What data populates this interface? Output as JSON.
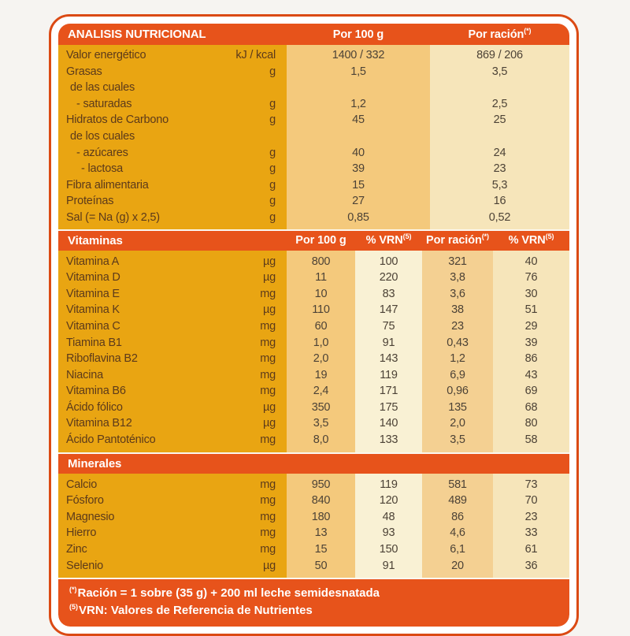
{
  "colors": {
    "band_orange": "#E7531B",
    "border_orange": "#DB4A14",
    "gold": "#E9A512",
    "tan_column": "#F4C97C",
    "cream_column": "#F6E5BA",
    "pale_cream_column": "#F9F1D4",
    "light_tan_column": "#F4D092",
    "label_text": "#5C3A1B",
    "value_text": "#4C4236",
    "page_background": "#F6F4F1"
  },
  "header": {
    "title": "ANALISIS NUTRICIONAL",
    "col_per100": "Por 100 g",
    "col_racion": "Por ración",
    "col_racion_sup": "(*)"
  },
  "energy": {
    "rows": [
      {
        "label": "Valor energético",
        "unit": "kJ / kcal",
        "per100": "1400 / 332",
        "racion": "869 / 206",
        "indent": 0
      },
      {
        "label": "Grasas",
        "unit": "g",
        "per100": "1,5",
        "racion": "3,5",
        "indent": 0
      },
      {
        "label": "de las cuales",
        "unit": "",
        "per100": "",
        "racion": "",
        "indent": 1
      },
      {
        "label": "- saturadas",
        "unit": "g",
        "per100": "1,2",
        "racion": "2,5",
        "indent": 2
      },
      {
        "label": "Hidratos de Carbono",
        "unit": "g",
        "per100": "45",
        "racion": "25",
        "indent": 0
      },
      {
        "label": "de los cuales",
        "unit": "",
        "per100": "",
        "racion": "",
        "indent": 1
      },
      {
        "label": "- azúcares",
        "unit": "g",
        "per100": "40",
        "racion": "24",
        "indent": 2
      },
      {
        "label": "- lactosa",
        "unit": "g",
        "per100": "39",
        "racion": "23",
        "indent": 3
      },
      {
        "label": "Fibra alimentaria",
        "unit": "g",
        "per100": "15",
        "racion": "5,3",
        "indent": 0
      },
      {
        "label": "Proteínas",
        "unit": "g",
        "per100": "27",
        "racion": "16",
        "indent": 0
      },
      {
        "label": "Sal (= Na (g) x 2,5)",
        "unit": "g",
        "per100": "0,85",
        "racion": "0,52",
        "indent": 0
      }
    ]
  },
  "vitamins": {
    "title": "Vitaminas",
    "col_headers": [
      {
        "label": "Por 100 g",
        "sup": ""
      },
      {
        "label": "% VRN",
        "sup": "(5)"
      },
      {
        "label": "Por ración",
        "sup": "(*)"
      },
      {
        "label": "% VRN",
        "sup": "(5)"
      }
    ],
    "rows": [
      {
        "label": "Vitamina A",
        "unit": "µg",
        "values": [
          "800",
          "100",
          "321",
          "40"
        ]
      },
      {
        "label": "Vitamina D",
        "unit": "µg",
        "values": [
          "11",
          "220",
          "3,8",
          "76"
        ]
      },
      {
        "label": "Vitamina E",
        "unit": "mg",
        "values": [
          "10",
          "83",
          "3,6",
          "30"
        ]
      },
      {
        "label": "Vitamina K",
        "unit": "µg",
        "values": [
          "110",
          "147",
          "38",
          "51"
        ]
      },
      {
        "label": "Vitamina C",
        "unit": "mg",
        "values": [
          "60",
          "75",
          "23",
          "29"
        ]
      },
      {
        "label": "Tiamina B1",
        "unit": "mg",
        "values": [
          "1,0",
          "91",
          "0,43",
          "39"
        ]
      },
      {
        "label": "Riboflavina B2",
        "unit": "mg",
        "values": [
          "2,0",
          "143",
          "1,2",
          "86"
        ]
      },
      {
        "label": "Niacina",
        "unit": "mg",
        "values": [
          "19",
          "119",
          "6,9",
          "43"
        ]
      },
      {
        "label": "Vitamina B6",
        "unit": "mg",
        "values": [
          "2,4",
          "171",
          "0,96",
          "69"
        ]
      },
      {
        "label": "Ácido fólico",
        "unit": "µg",
        "values": [
          "350",
          "175",
          "135",
          "68"
        ]
      },
      {
        "label": "Vitamina B12",
        "unit": "µg",
        "values": [
          "3,5",
          "140",
          "2,0",
          "80"
        ]
      },
      {
        "label": "Ácido Pantoténico",
        "unit": "mg",
        "values": [
          "8,0",
          "133",
          "3,5",
          "58"
        ]
      }
    ]
  },
  "minerals": {
    "title": "Minerales",
    "rows": [
      {
        "label": "Calcio",
        "unit": "mg",
        "values": [
          "950",
          "119",
          "581",
          "73"
        ]
      },
      {
        "label": "Fósforo",
        "unit": "mg",
        "values": [
          "840",
          "120",
          "489",
          "70"
        ]
      },
      {
        "label": "Magnesio",
        "unit": "mg",
        "values": [
          "180",
          "48",
          "86",
          "23"
        ]
      },
      {
        "label": "Hierro",
        "unit": "mg",
        "values": [
          "13",
          "93",
          "4,6",
          "33"
        ]
      },
      {
        "label": "Zinc",
        "unit": "mg",
        "values": [
          "15",
          "150",
          "6,1",
          "61"
        ]
      },
      {
        "label": "Selenio",
        "unit": "µg",
        "values": [
          "50",
          "91",
          "20",
          "36"
        ]
      }
    ]
  },
  "footnotes": [
    {
      "sup": "(*)",
      "text": "Ración = 1 sobre (35 g) + 200 ml leche semidesnatada"
    },
    {
      "sup": "(5)",
      "text": "VRN: Valores de Referencia de Nutrientes"
    }
  ]
}
